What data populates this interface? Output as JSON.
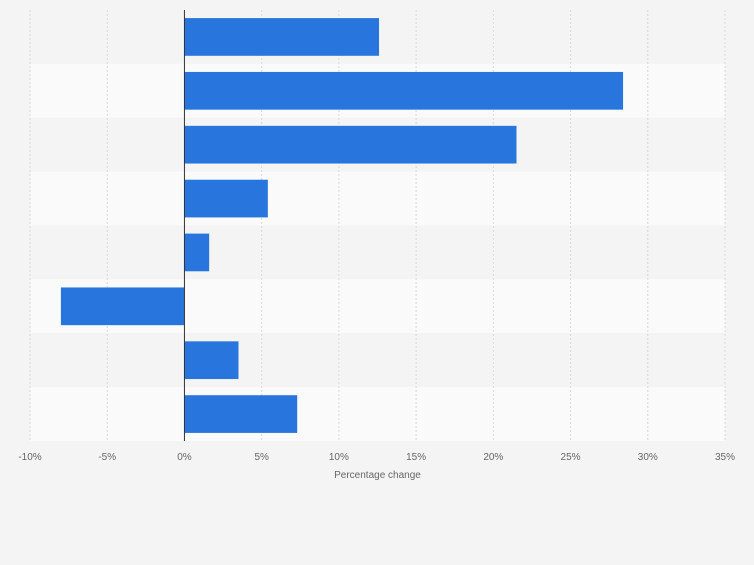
{
  "chart_data": {
    "type": "bar",
    "orientation": "horizontal",
    "categories": [
      "",
      "",
      "",
      "",
      "",
      "",
      "",
      ""
    ],
    "values": [
      12.6,
      28.4,
      21.5,
      5.4,
      1.6,
      -8.0,
      3.5,
      7.3
    ],
    "xlim": [
      -10,
      35
    ],
    "xticks": [
      -10,
      -5,
      0,
      5,
      10,
      15,
      20,
      25,
      30,
      35
    ],
    "xtick_labels": [
      "-10%",
      "-5%",
      "0%",
      "5%",
      "10%",
      "15%",
      "20%",
      "25%",
      "30%",
      "35%"
    ],
    "xlabel": "Percentage change",
    "ylabel": "",
    "title": "",
    "grid": true,
    "legend": "none",
    "colors": {
      "bar": "#2876dd",
      "band_light": "#fafafa",
      "band_dark": "#f4f4f4",
      "grid": "#d9d9d9",
      "zero_line": "#333333",
      "text": "#666666"
    }
  }
}
